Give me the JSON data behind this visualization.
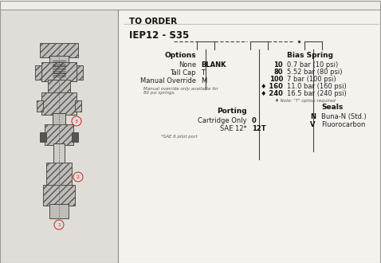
{
  "bg_color": "#f0ede8",
  "title": "TO ORDER",
  "model": "IEP12 - S35",
  "options_header": "Options",
  "options": [
    [
      "None",
      "BLANK"
    ],
    [
      "Tall Cap",
      "T"
    ],
    [
      "Manual Override",
      "M"
    ]
  ],
  "options_note1": "Manual override only available for",
  "options_note2": "80 psi springs.",
  "porting_header": "Porting",
  "porting": [
    [
      "Cartridge Only",
      "0"
    ],
    [
      "SAE 12*",
      "12T"
    ]
  ],
  "porting_note": "*SAE 6 pilot port",
  "seals_header": "Seals",
  "seals": [
    [
      "N",
      "Buna-N (Std.)"
    ],
    [
      "V",
      "Fluorocarbon"
    ]
  ],
  "bias_header": "Bias Spring",
  "bias": [
    [
      "10",
      "0.7 bar (10 psi)"
    ],
    [
      "80",
      "5.52 bar (80 psi)"
    ],
    [
      "100",
      "7 bar (100 psi)"
    ],
    [
      "♦ 160",
      "11.0 bar (160 psi)"
    ],
    [
      "♦ 240",
      "16.5 bar (240 psi)"
    ]
  ],
  "bias_note": "♦ Note: \"T\" option required"
}
